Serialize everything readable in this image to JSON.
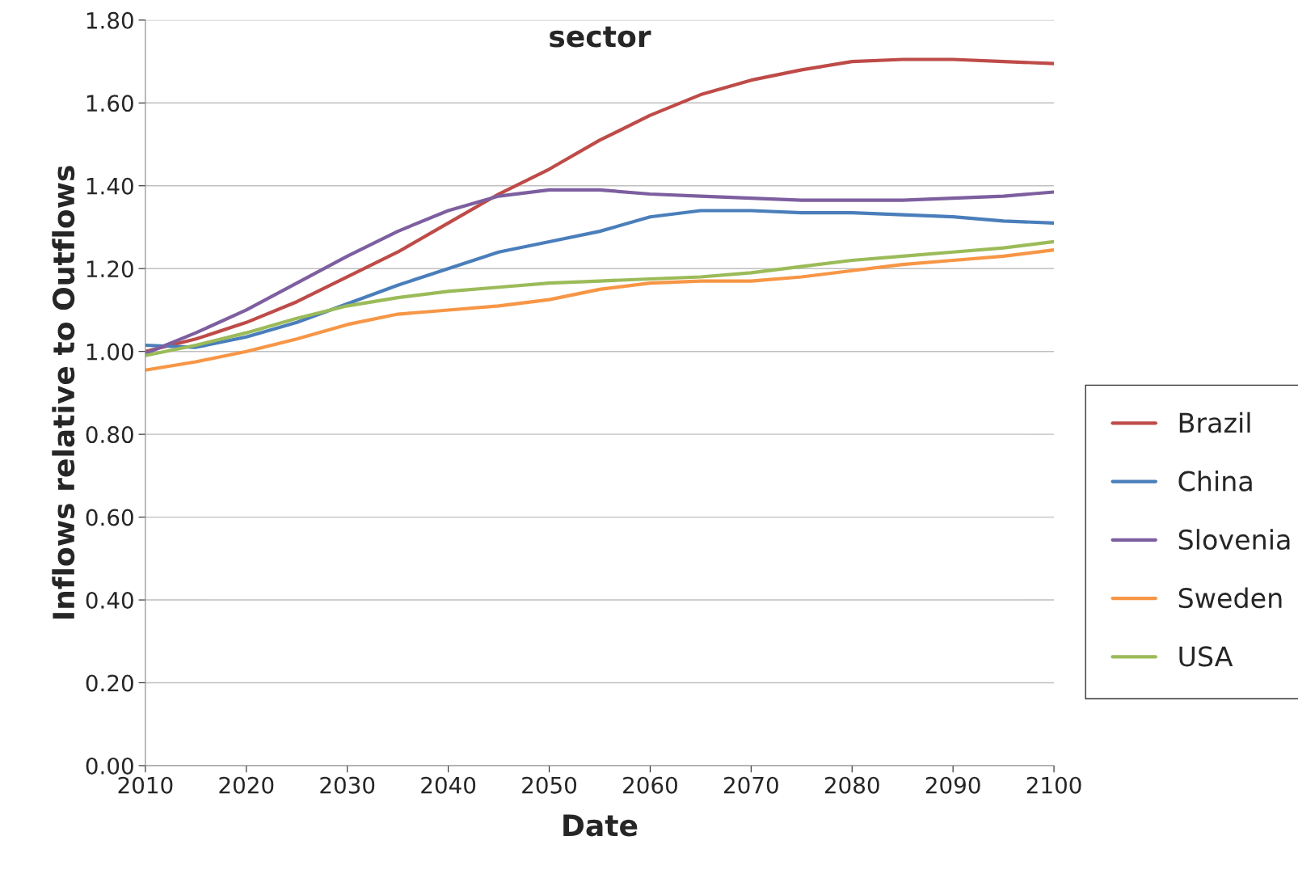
{
  "chart_data": {
    "type": "line",
    "title": "sector",
    "xlabel": "Date",
    "ylabel": "Inflows relative to Outflows",
    "x": [
      2010,
      2015,
      2020,
      2025,
      2030,
      2035,
      2040,
      2045,
      2050,
      2055,
      2060,
      2065,
      2070,
      2075,
      2080,
      2085,
      2090,
      2095,
      2100
    ],
    "series": [
      {
        "name": "Brazil",
        "color": "#be4b48",
        "values": [
          1.0,
          1.03,
          1.07,
          1.12,
          1.18,
          1.24,
          1.31,
          1.38,
          1.44,
          1.51,
          1.57,
          1.62,
          1.655,
          1.68,
          1.7,
          1.705,
          1.705,
          1.7,
          1.695
        ]
      },
      {
        "name": "China",
        "color": "#4a7ebb",
        "values": [
          1.015,
          1.01,
          1.035,
          1.07,
          1.115,
          1.16,
          1.2,
          1.24,
          1.265,
          1.29,
          1.325,
          1.34,
          1.34,
          1.335,
          1.335,
          1.33,
          1.325,
          1.315,
          1.31
        ]
      },
      {
        "name": "Slovenia",
        "color": "#7d5fa0",
        "values": [
          0.995,
          1.045,
          1.1,
          1.165,
          1.23,
          1.29,
          1.34,
          1.375,
          1.39,
          1.39,
          1.38,
          1.375,
          1.37,
          1.365,
          1.365,
          1.365,
          1.37,
          1.375,
          1.385
        ]
      },
      {
        "name": "Sweden",
        "color": "#f79646",
        "values": [
          0.955,
          0.975,
          1.0,
          1.03,
          1.065,
          1.09,
          1.1,
          1.11,
          1.125,
          1.15,
          1.165,
          1.17,
          1.17,
          1.18,
          1.195,
          1.21,
          1.22,
          1.23,
          1.245
        ]
      },
      {
        "name": "USA",
        "color": "#9bbb59",
        "values": [
          0.99,
          1.015,
          1.045,
          1.08,
          1.11,
          1.13,
          1.145,
          1.155,
          1.165,
          1.17,
          1.175,
          1.18,
          1.19,
          1.205,
          1.22,
          1.23,
          1.24,
          1.25,
          1.265
        ]
      }
    ],
    "xlim": [
      2010,
      2100
    ],
    "xticks": [
      2010,
      2020,
      2030,
      2040,
      2050,
      2060,
      2070,
      2080,
      2090,
      2100
    ],
    "ylim": [
      0,
      1.8
    ],
    "yticks": [
      {
        "value": 0,
        "label": "0.00"
      },
      {
        "value": 0.2,
        "label": "0.20"
      },
      {
        "value": 0.4,
        "label": "0.40"
      },
      {
        "value": 0.6,
        "label": "0.60"
      },
      {
        "value": 0.8,
        "label": "0.80"
      },
      {
        "value": 1.0,
        "label": "1.00"
      },
      {
        "value": 1.2,
        "label": "1.20"
      },
      {
        "value": 1.4,
        "label": "1.40"
      },
      {
        "value": 1.6,
        "label": "1.60"
      },
      {
        "value": 1.8,
        "label": "1.80"
      }
    ],
    "grid": "y",
    "legend": "right",
    "line_style": "solid",
    "marker": "none"
  }
}
